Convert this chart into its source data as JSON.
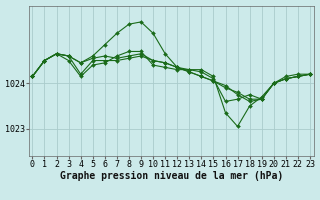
{
  "background_color": "#cceaea",
  "grid_color": "#aacccc",
  "line_color": "#1a6b1a",
  "marker_color": "#1a6b1a",
  "xlabel": "Graphe pression niveau de la mer (hPa)",
  "xlabel_fontsize": 7,
  "tick_fontsize": 6,
  "ylim": [
    1022.4,
    1025.7
  ],
  "yticks": [
    1023,
    1024
  ],
  "xlim": [
    -0.3,
    23.3
  ],
  "xticks": [
    0,
    1,
    2,
    3,
    4,
    5,
    6,
    7,
    8,
    9,
    10,
    11,
    12,
    13,
    14,
    15,
    16,
    17,
    18,
    19,
    20,
    21,
    22,
    23
  ],
  "series": [
    [
      1024.15,
      1024.5,
      1024.65,
      1024.6,
      1024.45,
      1024.6,
      1024.85,
      1025.1,
      1025.3,
      1025.35,
      1025.1,
      1024.65,
      1024.35,
      1024.3,
      1024.3,
      1024.15,
      1023.35,
      1023.05,
      1023.5,
      1023.7,
      1024.0,
      1024.1,
      1024.15,
      1024.2
    ],
    [
      1024.15,
      1024.5,
      1024.65,
      1024.6,
      1024.2,
      1024.5,
      1024.5,
      1024.5,
      1024.55,
      1024.6,
      1024.5,
      1024.45,
      1024.35,
      1024.25,
      1024.15,
      1024.05,
      1023.95,
      1023.75,
      1023.6,
      1023.65,
      1024.0,
      1024.1,
      1024.15,
      1024.2
    ],
    [
      1024.15,
      1024.5,
      1024.65,
      1024.6,
      1024.45,
      1024.55,
      1024.6,
      1024.55,
      1024.6,
      1024.65,
      1024.5,
      1024.45,
      1024.35,
      1024.25,
      1024.15,
      1024.05,
      1023.9,
      1023.8,
      1023.65,
      1023.65,
      1024.0,
      1024.1,
      1024.15,
      1024.2
    ],
    [
      1024.15,
      1024.5,
      1024.65,
      1024.5,
      1024.15,
      1024.4,
      1024.45,
      1024.6,
      1024.7,
      1024.7,
      1024.4,
      1024.35,
      1024.3,
      1024.3,
      1024.25,
      1024.1,
      1023.6,
      1023.65,
      1023.75,
      1023.65,
      1024.0,
      1024.15,
      1024.2,
      1024.2
    ]
  ]
}
